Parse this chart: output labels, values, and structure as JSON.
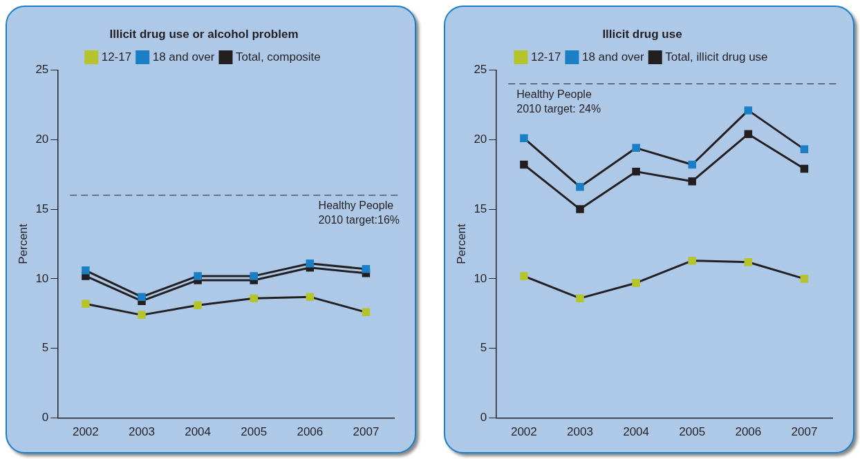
{
  "chart_data": [
    {
      "type": "line",
      "title": "Illicit drug use or alcohol problem",
      "ylabel": "Percent",
      "categories": [
        "2002",
        "2003",
        "2004",
        "2005",
        "2006",
        "2007"
      ],
      "ylim": [
        0,
        25
      ],
      "yticks": [
        0,
        5,
        10,
        15,
        20,
        25
      ],
      "grid": false,
      "legend": "top",
      "marker": "square",
      "line_style": "solid",
      "series": [
        {
          "name": "Total, composite",
          "color": "#231f20",
          "values": [
            10.2,
            8.4,
            9.9,
            9.9,
            10.8,
            10.4
          ]
        },
        {
          "name": "18 and over",
          "color": "#1a7fc4",
          "values": [
            10.6,
            8.7,
            10.2,
            10.2,
            11.1,
            10.7
          ]
        },
        {
          "name": "12-17",
          "color": "#b5c42a",
          "values": [
            8.2,
            7.4,
            8.1,
            8.6,
            8.7,
            7.6
          ]
        }
      ],
      "ref_lines": [
        {
          "axis": "y",
          "value": 16,
          "label": "Healthy People\n2010 target:16%",
          "line_style": "dashed"
        }
      ]
    },
    {
      "type": "line",
      "title": "Illicit drug use",
      "ylabel": "Percent",
      "categories": [
        "2002",
        "2003",
        "2004",
        "2005",
        "2006",
        "2007"
      ],
      "ylim": [
        0,
        25
      ],
      "yticks": [
        0,
        5,
        10,
        15,
        20,
        25
      ],
      "grid": false,
      "legend": "top",
      "marker": "square",
      "line_style": "solid",
      "series": [
        {
          "name": "Total, illicit drug use",
          "color": "#231f20",
          "values": [
            18.2,
            15.0,
            17.7,
            17.0,
            20.4,
            17.9
          ]
        },
        {
          "name": "18 and over",
          "color": "#1a7fc4",
          "values": [
            20.1,
            16.6,
            19.4,
            18.2,
            22.1,
            19.3
          ]
        },
        {
          "name": "12-17",
          "color": "#b5c42a",
          "values": [
            10.2,
            8.6,
            9.7,
            11.3,
            11.2,
            10.0
          ]
        }
      ],
      "ref_lines": [
        {
          "axis": "y",
          "value": 24,
          "label": "Healthy People\n2010 target: 24%",
          "line_style": "dashed"
        }
      ]
    }
  ]
}
